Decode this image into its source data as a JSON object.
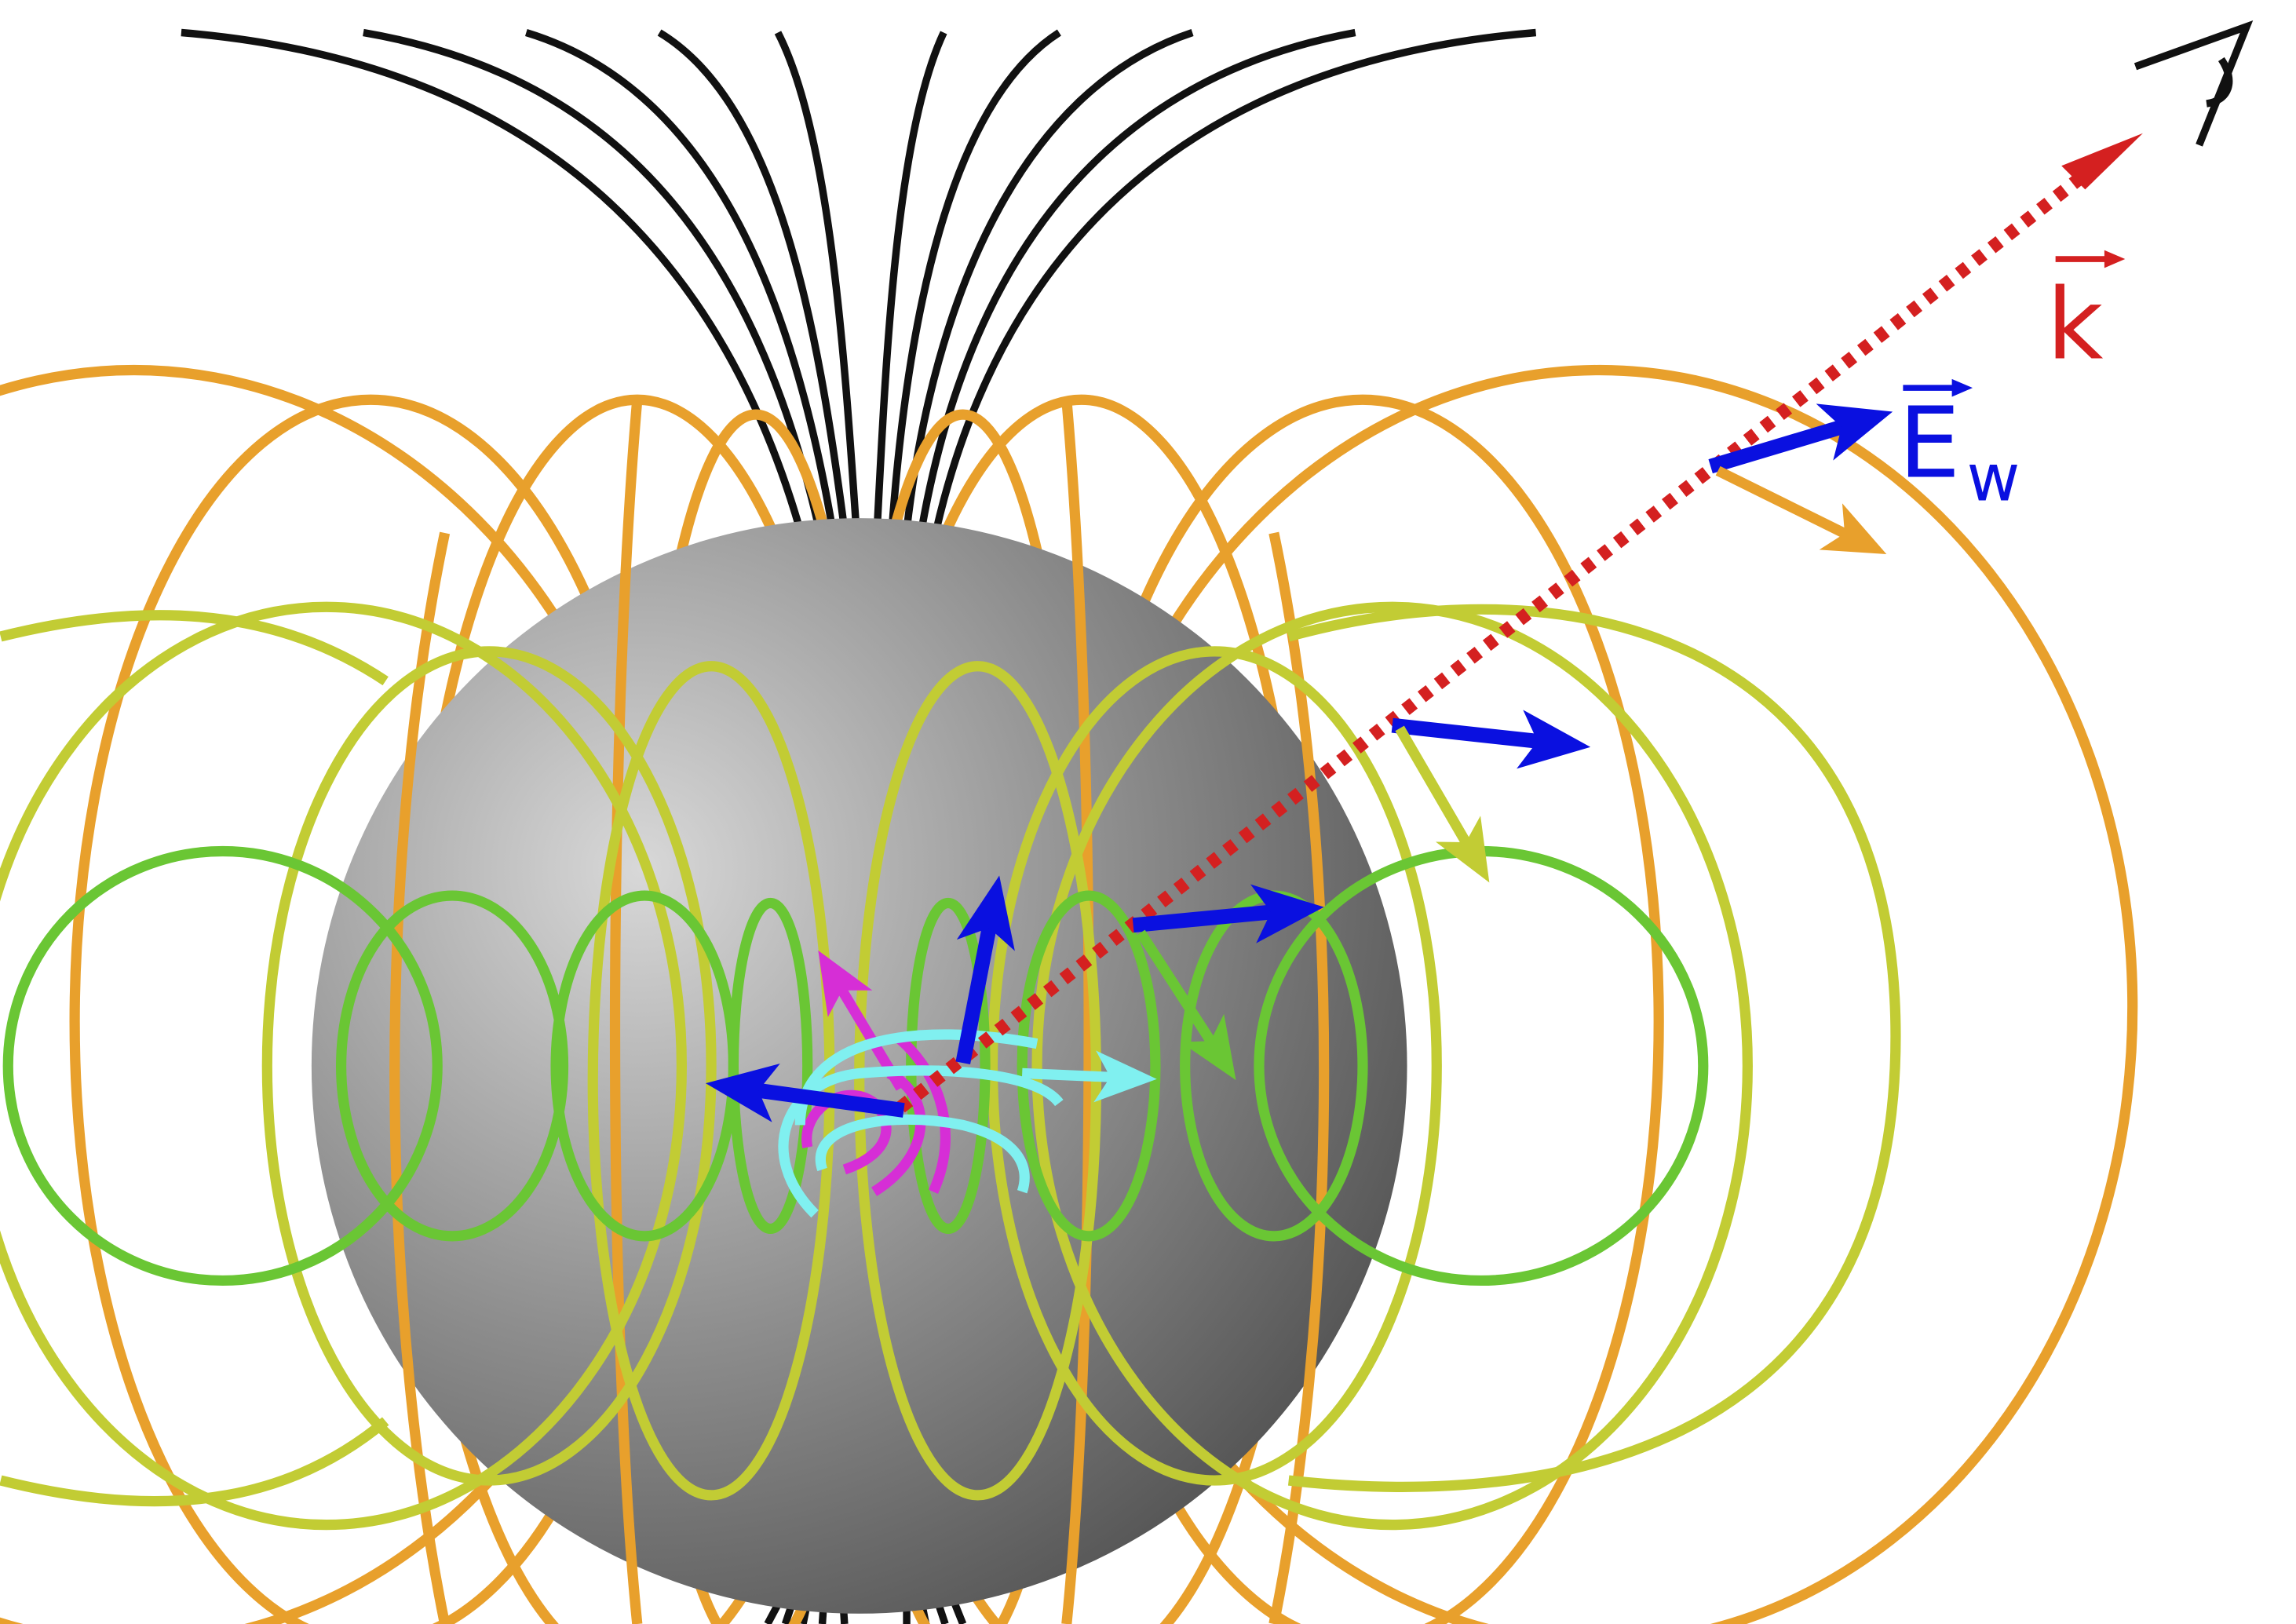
{
  "labels": {
    "wave_vector": "k",
    "electric_field_main": "E",
    "electric_field_subscript": "w"
  },
  "icons": {
    "observer": "eye-icon",
    "sphere": "shaded-sphere"
  },
  "colors": {
    "background": "#ffffff",
    "sphere_light": "#d8d8d8",
    "sphere_dark": "#5a5a5a",
    "field_lines_far": "#111111",
    "field_lines_outer": "#e8a02c",
    "field_lines_middle": "#c2cc34",
    "field_lines_inner": "#6ac634",
    "wave_vector": "#d42020",
    "electric_field_vectors": "#0a10e0",
    "internal_current_a": "#d62ed6",
    "internal_current_b": "#80f0f0"
  }
}
